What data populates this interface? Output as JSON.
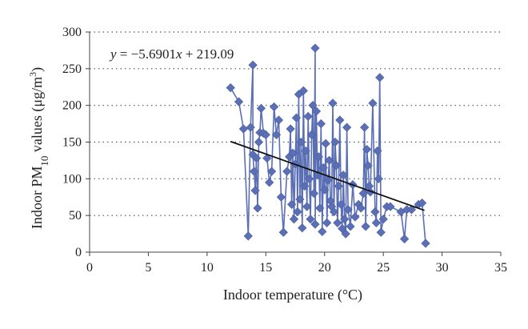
{
  "chart_data": {
    "type": "scatter",
    "xlabel": "Indoor temperature (°C)",
    "ylabel_parts": {
      "prefix": "Indoor PM",
      "sub": "10",
      "mid": " values (μg/m",
      "sup": "3",
      "suffix": ")"
    },
    "xlim": [
      0,
      35
    ],
    "ylim": [
      0,
      300
    ],
    "xticks": [
      0,
      5,
      10,
      15,
      20,
      25,
      30,
      35
    ],
    "yticks": [
      0,
      50,
      100,
      150,
      200,
      250,
      300
    ],
    "grid": "horizontal-dotted",
    "series_color": "#5b6fb5",
    "trend_color": "#111111",
    "equation_parts": {
      "y": "y",
      "eq": " = −5.6901",
      "x": "x",
      "rest": " + 219.09"
    },
    "trendline": {
      "slope": -5.6901,
      "intercept": 219.09,
      "x_range": [
        12.0,
        28.5
      ]
    },
    "points": [
      [
        12.0,
        224
      ],
      [
        12.7,
        205
      ],
      [
        13.1,
        168
      ],
      [
        13.5,
        22
      ],
      [
        13.7,
        170
      ],
      [
        13.9,
        255
      ],
      [
        13.9,
        133
      ],
      [
        14.0,
        110
      ],
      [
        14.1,
        84
      ],
      [
        14.2,
        128
      ],
      [
        14.3,
        60
      ],
      [
        14.4,
        150
      ],
      [
        14.5,
        163
      ],
      [
        14.6,
        196
      ],
      [
        14.8,
        162
      ],
      [
        15.0,
        160
      ],
      [
        15.1,
        128
      ],
      [
        15.3,
        95
      ],
      [
        15.5,
        110
      ],
      [
        15.7,
        198
      ],
      [
        15.9,
        160
      ],
      [
        16.1,
        180
      ],
      [
        16.3,
        75
      ],
      [
        16.5,
        27
      ],
      [
        16.8,
        110
      ],
      [
        17.0,
        130
      ],
      [
        17.1,
        168
      ],
      [
        17.2,
        65
      ],
      [
        17.3,
        135
      ],
      [
        17.4,
        45
      ],
      [
        17.5,
        120
      ],
      [
        17.6,
        183
      ],
      [
        17.7,
        55
      ],
      [
        17.8,
        215
      ],
      [
        17.9,
        72
      ],
      [
        18.0,
        150
      ],
      [
        18.1,
        33
      ],
      [
        18.2,
        220
      ],
      [
        18.3,
        90
      ],
      [
        18.4,
        138
      ],
      [
        18.5,
        62
      ],
      [
        18.6,
        185
      ],
      [
        18.7,
        100
      ],
      [
        18.8,
        45
      ],
      [
        18.9,
        160
      ],
      [
        19.0,
        200
      ],
      [
        19.1,
        80
      ],
      [
        19.2,
        278
      ],
      [
        19.2,
        38
      ],
      [
        19.3,
        192
      ],
      [
        19.4,
        105
      ],
      [
        19.5,
        130
      ],
      [
        19.6,
        60
      ],
      [
        19.7,
        175
      ],
      [
        19.8,
        28
      ],
      [
        19.9,
        115
      ],
      [
        20.0,
        85
      ],
      [
        20.1,
        148
      ],
      [
        20.2,
        40
      ],
      [
        20.3,
        98
      ],
      [
        20.4,
        125
      ],
      [
        20.5,
        70
      ],
      [
        20.6,
        62
      ],
      [
        20.7,
        203
      ],
      [
        20.8,
        55
      ],
      [
        20.9,
        150
      ],
      [
        21.0,
        118
      ],
      [
        21.1,
        40
      ],
      [
        21.2,
        90
      ],
      [
        21.3,
        180
      ],
      [
        21.4,
        65
      ],
      [
        21.5,
        32
      ],
      [
        21.6,
        105
      ],
      [
        21.7,
        45
      ],
      [
        21.8,
        25
      ],
      [
        21.9,
        170
      ],
      [
        22.0,
        58
      ],
      [
        22.2,
        35
      ],
      [
        22.4,
        92
      ],
      [
        22.6,
        48
      ],
      [
        22.9,
        65
      ],
      [
        23.1,
        60
      ],
      [
        23.3,
        80
      ],
      [
        23.4,
        170
      ],
      [
        23.5,
        35
      ],
      [
        23.6,
        140
      ],
      [
        23.7,
        118
      ],
      [
        23.8,
        90
      ],
      [
        23.9,
        82
      ],
      [
        24.1,
        203
      ],
      [
        24.3,
        55
      ],
      [
        24.4,
        40
      ],
      [
        24.5,
        138
      ],
      [
        24.6,
        100
      ],
      [
        24.7,
        238
      ],
      [
        24.8,
        27
      ],
      [
        25.0,
        45
      ],
      [
        25.3,
        62
      ],
      [
        25.6,
        62
      ],
      [
        26.5,
        55
      ],
      [
        26.8,
        18
      ],
      [
        27.0,
        58
      ],
      [
        27.4,
        58
      ],
      [
        28.0,
        65
      ],
      [
        28.3,
        67
      ],
      [
        28.6,
        12
      ]
    ]
  }
}
